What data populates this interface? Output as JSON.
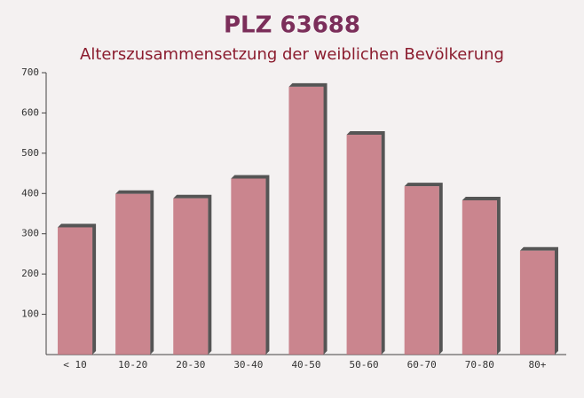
{
  "chart_data": {
    "type": "bar",
    "title": "PLZ 63688",
    "subtitle": "Alterszusammensetzung der weiblichen Bevölkerung",
    "categories": [
      "< 10",
      "10-20",
      "20-30",
      "30-40",
      "40-50",
      "50-60",
      "60-70",
      "70-80",
      "80+"
    ],
    "values": [
      316,
      399,
      388,
      437,
      665,
      546,
      418,
      383,
      258
    ],
    "color": "#c2727c",
    "ylim": [
      0,
      700
    ],
    "yticks": [
      100,
      200,
      300,
      400,
      500,
      600,
      700
    ]
  }
}
